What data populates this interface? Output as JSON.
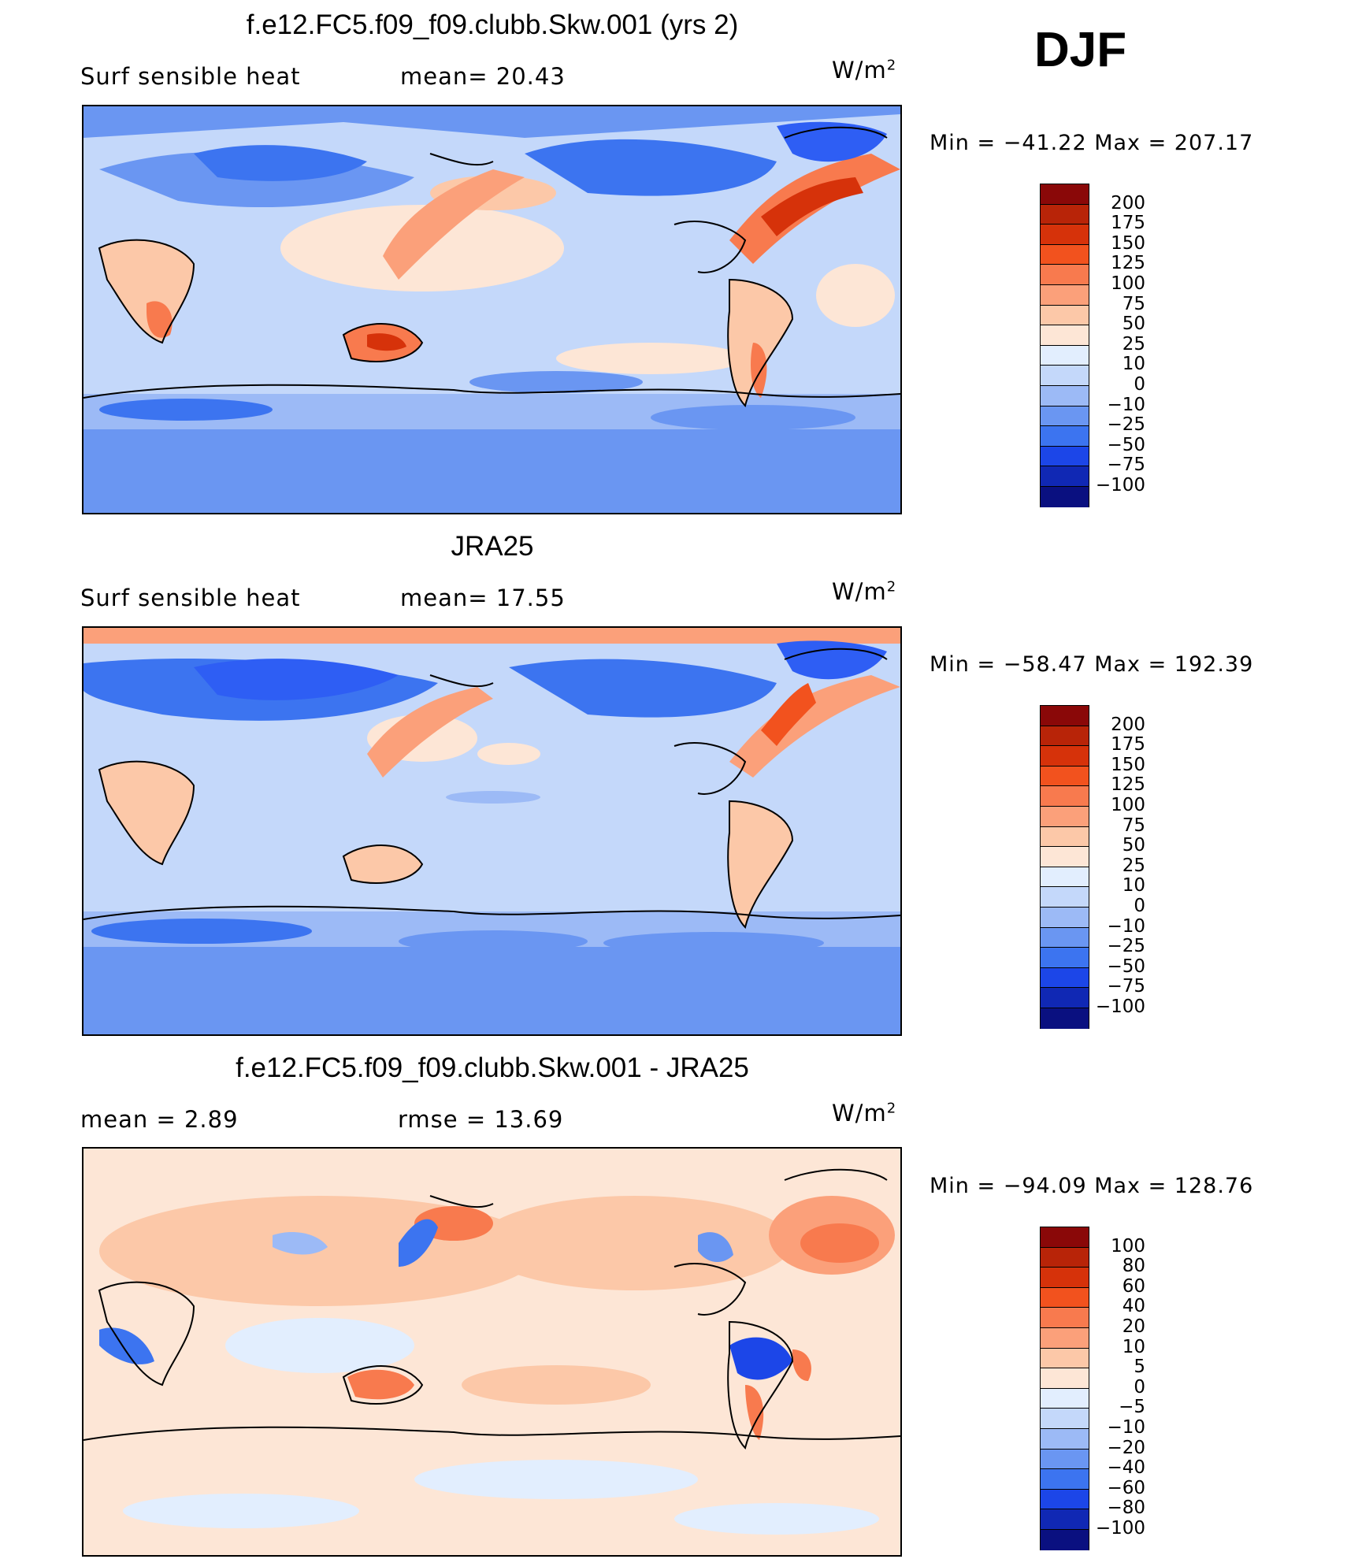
{
  "season": "DJF",
  "colors": {
    "absolute_scale": [
      "#0a1080",
      "#1028b4",
      "#1c46e8",
      "#2e5ef4",
      "#3c74f0",
      "#6a96f2",
      "#9cbaf6",
      "#c4d8fa",
      "#e2eefe",
      "#fde6d6",
      "#fcc8a8",
      "#fba07a",
      "#f87a4e",
      "#f2521e",
      "#d6320a",
      "#b82408",
      "#8a0808"
    ],
    "difference_scale": [
      "#0a1080",
      "#1028b4",
      "#1c46e8",
      "#2e5ef4",
      "#3c74f0",
      "#6a96f2",
      "#9cbaf6",
      "#c4d8fa",
      "#e2eefe",
      "#fde6d6",
      "#fcc8a8",
      "#fba07a",
      "#f87a4e",
      "#f2521e",
      "#d6320a",
      "#b82408",
      "#8a0808"
    ]
  },
  "panels": [
    {
      "title": "f.e12.FC5.f09_f09.clubb.Skw.001 (yrs 2)",
      "left_label": "Surf  sensible  heat",
      "right_label": "mean=   20.43",
      "units": "W/m",
      "units_sup": "2",
      "minmax": "Min  =  −41.22  Max  =  207.17",
      "colorbar_labels": [
        "200",
        "175",
        "150",
        "125",
        "100",
        "75",
        "50",
        "25",
        "10",
        "0",
        "−10",
        "−25",
        "−50",
        "−75",
        "−100"
      ]
    },
    {
      "title": "JRA25",
      "left_label": "Surf  sensible  heat",
      "right_label": "mean=   17.55",
      "units": "W/m",
      "units_sup": "2",
      "minmax": "Min  =  −58.47  Max  =  192.39",
      "colorbar_labels": [
        "200",
        "175",
        "150",
        "125",
        "100",
        "75",
        "50",
        "25",
        "10",
        "0",
        "−10",
        "−25",
        "−50",
        "−75",
        "−100"
      ]
    },
    {
      "title": "f.e12.FC5.f09_f09.clubb.Skw.001 - JRA25",
      "left_label": "mean  =      2.89",
      "right_label": "rmse  =     13.69",
      "units": "W/m",
      "units_sup": "2",
      "minmax": "Min  =  −94.09  Max  =  128.76",
      "colorbar_labels": [
        "100",
        "80",
        "60",
        "40",
        "20",
        "10",
        "5",
        "0",
        "−5",
        "−10",
        "−20",
        "−40",
        "−60",
        "−80",
        "−100"
      ]
    }
  ]
}
